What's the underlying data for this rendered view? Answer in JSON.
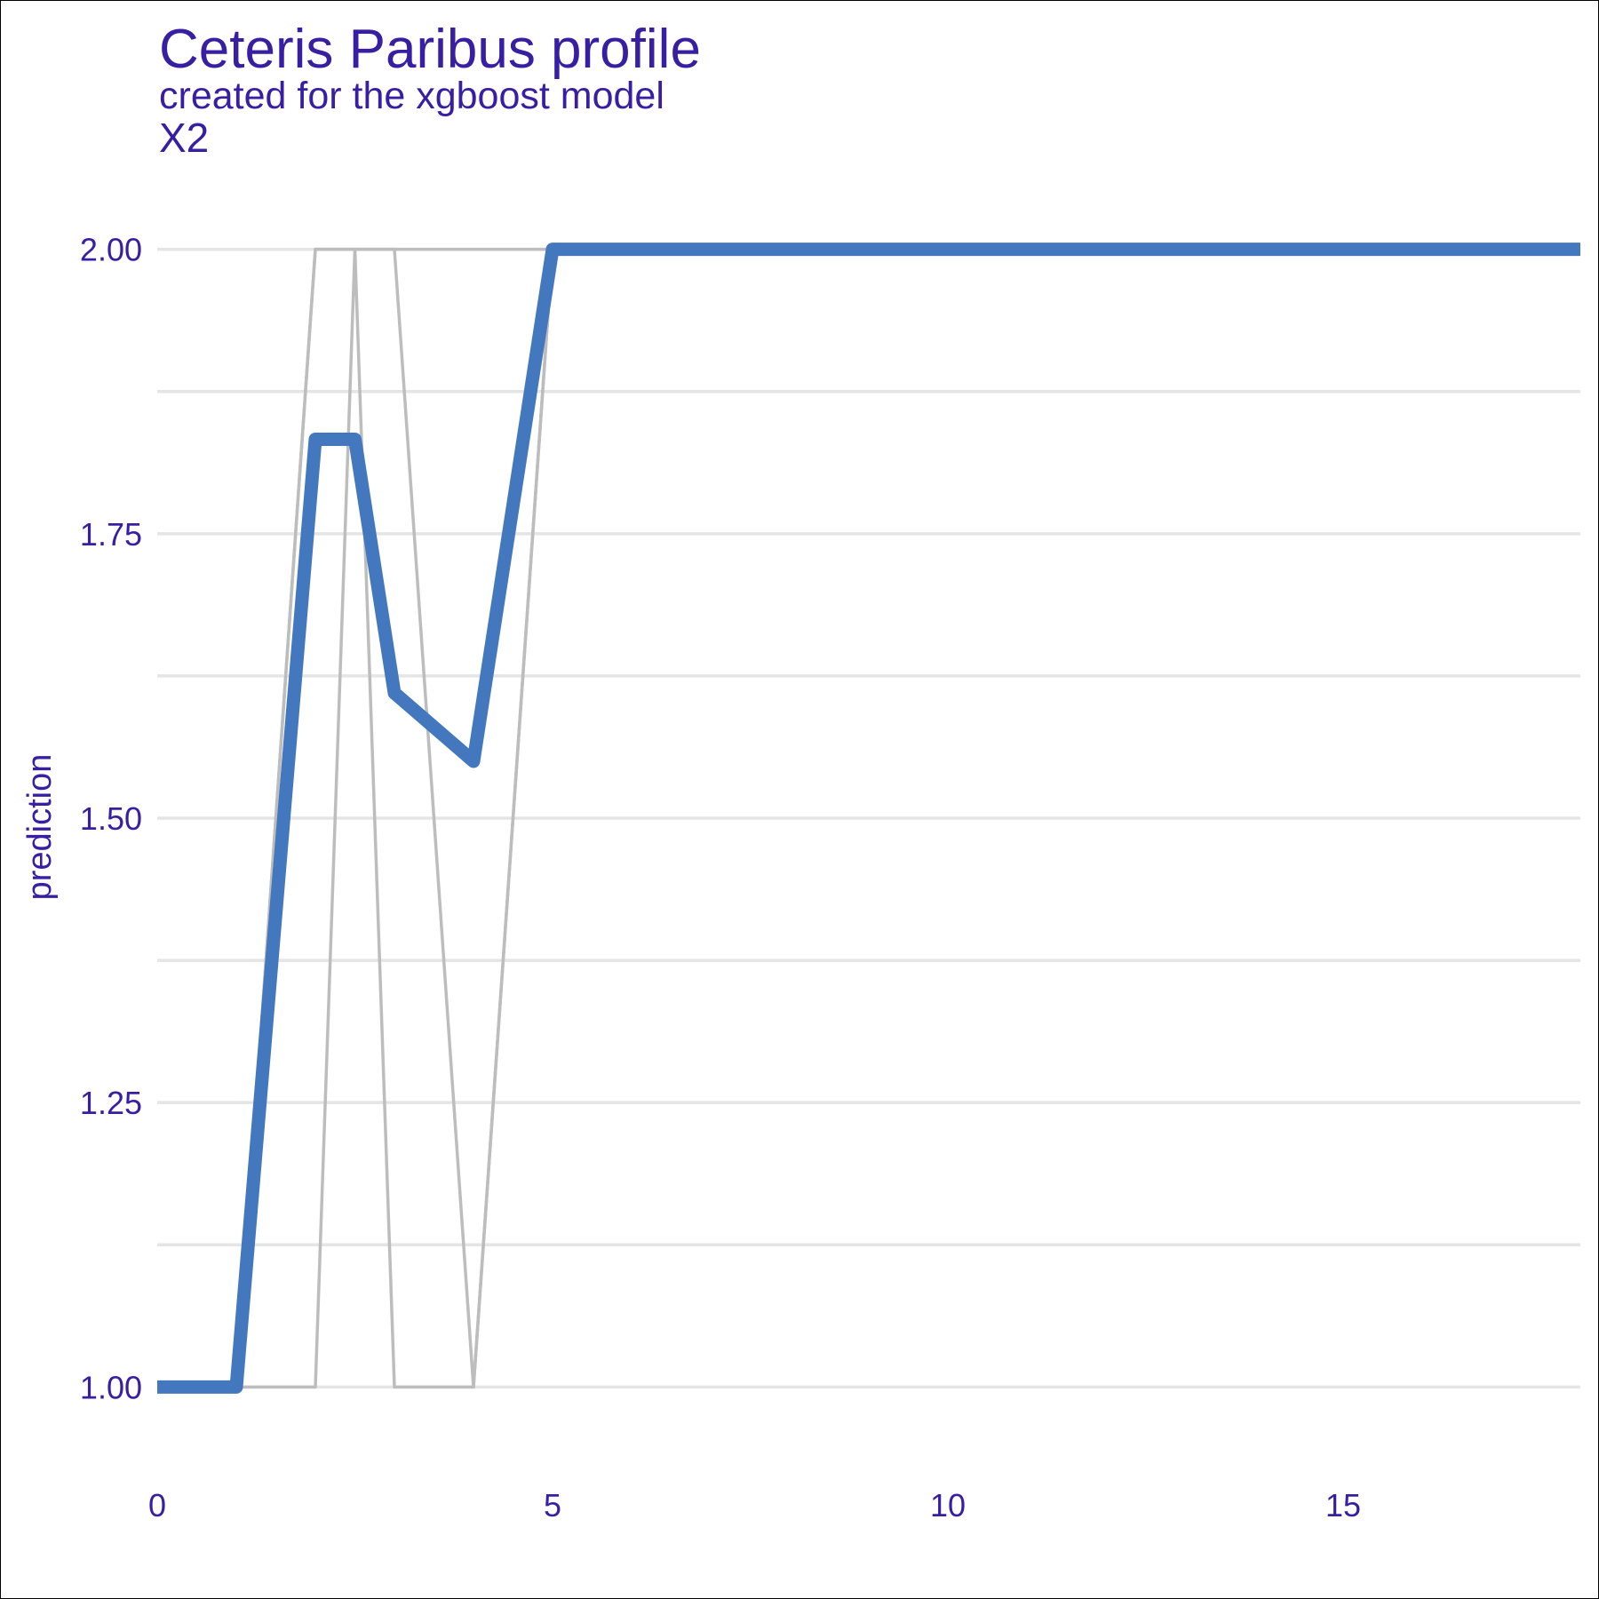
{
  "chart_data": {
    "type": "line",
    "title": "Ceteris Paribus profile",
    "subtitle": "created for the xgboost model",
    "panel_label": "X2",
    "xlabel": "",
    "ylabel": "prediction",
    "xlim": [
      0,
      18
    ],
    "ylim": [
      0.93,
      2.07
    ],
    "x_ticks": [
      0,
      5,
      10,
      15
    ],
    "x_tick_labels": [
      "0",
      "5",
      "10",
      "15"
    ],
    "y_ticks": [
      1.0,
      1.25,
      1.5,
      1.75,
      2.0
    ],
    "y_tick_labels": [
      "1.00",
      "1.25",
      "1.50",
      "1.75",
      "2.00"
    ],
    "y_minor_gridlines": [
      1.125,
      1.375,
      1.625,
      1.875
    ],
    "grid": "horizontal only",
    "legend": "none",
    "colors": {
      "text": "#371ea3",
      "main_series": "#4378bf",
      "individual_profiles": "#bdbdbd",
      "gridlines": "#e5e5e5",
      "background": "#ffffff"
    },
    "series": [
      {
        "role": "background",
        "x": [
          0,
          1,
          2,
          2.5,
          3,
          4,
          5,
          18
        ],
        "y": [
          1.0,
          1.0,
          2.0,
          2.0,
          2.0,
          2.0,
          2.0,
          2.0
        ]
      },
      {
        "role": "background",
        "x": [
          0,
          1,
          2,
          2.5,
          3,
          4,
          5,
          18
        ],
        "y": [
          1.0,
          1.0,
          1.0,
          2.0,
          1.0,
          1.0,
          2.0,
          2.0
        ]
      },
      {
        "role": "background",
        "x": [
          0,
          1,
          2,
          2.5,
          3,
          4,
          5,
          18
        ],
        "y": [
          1.0,
          1.0,
          2.0,
          2.0,
          2.0,
          1.0,
          2.0,
          2.0
        ]
      },
      {
        "role": "main",
        "x": [
          0,
          1,
          2,
          2.5,
          3,
          4,
          5,
          18
        ],
        "y": [
          1.0,
          1.0,
          1.833,
          1.833,
          1.61,
          1.55,
          2.0,
          2.0
        ]
      }
    ]
  }
}
